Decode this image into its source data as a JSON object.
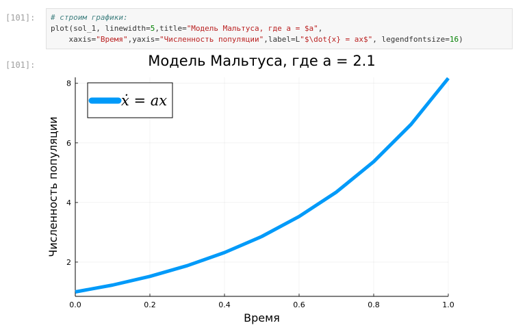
{
  "cell": {
    "in_prompt": "[101]:",
    "out_prompt": "[101]:",
    "code_comment": "# строим графики:",
    "code_line1_pre": "plot(sol_1, linewidth=",
    "code_line1_num": "5",
    "code_line1_mid": ",title=",
    "code_line1_str": "\"Модель Мальтуса, где a = $a\"",
    "code_line1_end": ",",
    "code_line2_pre": "    xaxis=",
    "code_line2_str1": "\"Время\"",
    "code_line2_mid1": ",yaxis=",
    "code_line2_str2": "\"Численность популяции\"",
    "code_line2_mid2": ",label=L",
    "code_line2_str3": "\"$\\dot{x} = ax$\"",
    "code_line2_mid3": ", legendfontsize=",
    "code_line2_num": "16",
    "code_line2_end": ")"
  },
  "chart_data": {
    "type": "line",
    "title": "Модель Мальтуса, где a = 2.1",
    "xlabel": "Время",
    "ylabel": "Численность популяции",
    "xlim": [
      0.0,
      1.0
    ],
    "ylim": [
      0.85,
      8.2
    ],
    "x_ticks": [
      "0.0",
      "0.2",
      "0.4",
      "0.6",
      "0.8",
      "1.0"
    ],
    "y_ticks": [
      "2",
      "4",
      "6",
      "8"
    ],
    "grid": true,
    "legend_position": "top-left",
    "series": [
      {
        "name": "ẋ = ax",
        "color": "#009af9",
        "x": [
          0.0,
          0.1,
          0.2,
          0.3,
          0.4,
          0.5,
          0.6,
          0.7,
          0.8,
          0.9,
          1.0
        ],
        "y": [
          1.0,
          1.23,
          1.52,
          1.88,
          2.32,
          2.86,
          3.53,
          4.35,
          5.37,
          6.62,
          8.17
        ]
      }
    ]
  }
}
